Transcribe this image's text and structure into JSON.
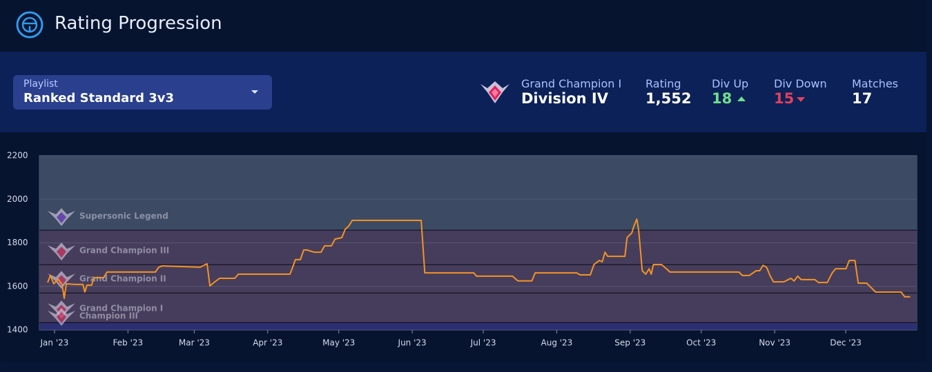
{
  "header": {
    "title": "Rating Progression"
  },
  "playlist": {
    "label": "Playlist",
    "value": "Ranked Standard 3v3"
  },
  "rank": {
    "tier": "Grand Champion I",
    "division": "Division IV"
  },
  "stats": [
    {
      "label": "Rating",
      "value": "1,552"
    },
    {
      "label": "Div Up",
      "value": "18"
    },
    {
      "label": "Div Down",
      "value": "15"
    },
    {
      "label": "Matches",
      "value": "17"
    }
  ],
  "chart_data": {
    "type": "line",
    "x": [
      -2.9,
      -1.7,
      -0.3,
      1.5,
      3.2,
      4.1,
      5.0,
      9.0,
      12.0,
      12.8,
      13.7,
      15.7,
      16.6,
      20.7,
      22.2,
      42.6,
      44.0,
      45.5,
      61.5,
      64.4,
      65.6,
      67.3,
      69.7,
      76.1,
      77.6,
      99.4,
      100.3,
      101.7,
      103.8,
      105.2,
      106.7,
      109.6,
      112.5,
      114.0,
      116.9,
      118.4,
      121.3,
      122.7,
      124.2,
      125.7,
      154.8,
      156.3,
      177.0,
      178.1,
      193.3,
      195.6,
      201.5,
      202.9,
      220.4,
      221.9,
      226.2,
      227.7,
      230.0,
      231.2,
      232.4,
      233.5,
      240.8,
      241.7,
      243.7,
      244.6,
      245.8,
      246.6,
      248.1,
      249.6,
      251.0,
      251.9,
      252.8,
      256.3,
      258.3,
      259.8,
      288.9,
      290.4,
      293.3,
      296.2,
      297.7,
      299.1,
      300.6,
      302.0,
      303.5,
      307.9,
      310.8,
      312.2,
      313.7,
      315.2,
      321.0,
      322.5,
      326.2,
      328.3,
      329.7,
      334.1,
      335.5,
      337.9,
      339.3,
      342.8,
      344.3,
      346.6,
      357.4,
      358.9,
      361.2
    ],
    "series": [
      {
        "color": "#f39423",
        "values": [
          1618,
          1650,
          1612,
          1634,
          1609,
          1545,
          1612,
          1609,
          1609,
          1574,
          1606,
          1606,
          1640,
          1640,
          1666,
          1666,
          1688,
          1694,
          1688,
          1704,
          1602,
          1618,
          1637,
          1637,
          1656,
          1656,
          1681,
          1723,
          1723,
          1767,
          1767,
          1757,
          1757,
          1786,
          1786,
          1817,
          1824,
          1862,
          1877,
          1903,
          1903,
          1662,
          1662,
          1647,
          1647,
          1625,
          1625,
          1662,
          1662,
          1653,
          1653,
          1700,
          1719,
          1713,
          1757,
          1738,
          1738,
          1824,
          1846,
          1877,
          1909,
          1855,
          1672,
          1656,
          1681,
          1656,
          1700,
          1700,
          1681,
          1666,
          1666,
          1650,
          1650,
          1672,
          1672,
          1697,
          1688,
          1650,
          1621,
          1621,
          1637,
          1625,
          1647,
          1631,
          1631,
          1618,
          1618,
          1662,
          1681,
          1681,
          1719,
          1719,
          1615,
          1615,
          1599,
          1574,
          1574,
          1552,
          1552
        ]
      }
    ],
    "xlim": [
      -6.4,
      364
    ],
    "xticks": [
      {
        "value": 0,
        "label": "Jan '23"
      },
      {
        "value": 31,
        "label": "Feb '23"
      },
      {
        "value": 59,
        "label": "Mar '23"
      },
      {
        "value": 90,
        "label": "Apr '23"
      },
      {
        "value": 120,
        "label": "May '23"
      },
      {
        "value": 151,
        "label": "Jun '23"
      },
      {
        "value": 181,
        "label": "Jul '23"
      },
      {
        "value": 212,
        "label": "Aug '23"
      },
      {
        "value": 243,
        "label": "Sep '23"
      },
      {
        "value": 273,
        "label": "Oct '23"
      },
      {
        "value": 304,
        "label": "Nov '23"
      },
      {
        "value": 334,
        "label": "Dec '23"
      }
    ],
    "ylim": [
      1400,
      2200
    ],
    "yticks": [
      1400,
      1600,
      1800,
      2000,
      2200
    ],
    "grid": true,
    "rank_bands": [
      {
        "label": "Supersonic Legend",
        "min": 1858,
        "color": "#3c4a63"
      },
      {
        "label": "Grand Champion III",
        "min": 1700,
        "color": "#463d5c"
      },
      {
        "label": "Grand Champion II",
        "min": 1570,
        "color": "#463d5c"
      },
      {
        "label": "Grand Champion I",
        "min": 1434,
        "color": "#463d5c"
      },
      {
        "label": "Champion III",
        "min": 1400,
        "color": "#2c2f70"
      }
    ]
  }
}
